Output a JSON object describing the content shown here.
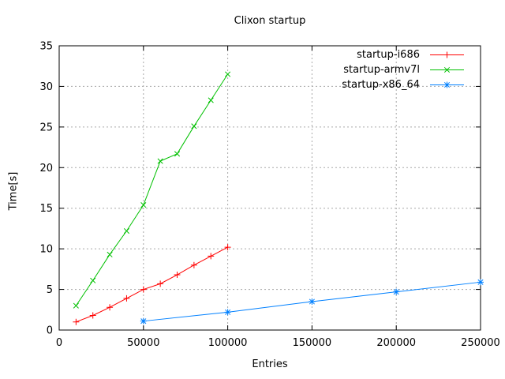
{
  "chart_data": {
    "type": "line",
    "title": "Clixon startup",
    "xlabel": "Entries",
    "ylabel": "Time[s]",
    "xlim": [
      0,
      250000
    ],
    "ylim": [
      0,
      35
    ],
    "x_ticks": [
      0,
      50000,
      100000,
      150000,
      200000,
      250000
    ],
    "y_ticks": [
      0,
      5,
      10,
      15,
      20,
      25,
      30,
      35
    ],
    "grid": true,
    "legend_position": "top-right-inside",
    "colors": {
      "background": "#ffffff",
      "axis": "#000000",
      "grid": "#a8a8a8",
      "text": "#000000"
    },
    "series": [
      {
        "name": "startup-i686",
        "color": "#ff0000",
        "marker": "plus",
        "x": [
          10000,
          20000,
          30000,
          40000,
          50000,
          60000,
          70000,
          80000,
          90000,
          100000
        ],
        "y": [
          1.0,
          1.8,
          2.8,
          3.9,
          5.0,
          5.7,
          6.8,
          8.0,
          9.1,
          10.2
        ]
      },
      {
        "name": "startup-armv7l",
        "color": "#00c000",
        "marker": "cross",
        "x": [
          10000,
          20000,
          30000,
          40000,
          50000,
          60000,
          70000,
          80000,
          90000,
          100000
        ],
        "y": [
          3.0,
          6.1,
          9.3,
          12.2,
          15.4,
          20.8,
          21.7,
          25.1,
          28.3,
          31.5
        ]
      },
      {
        "name": "startup-x86_64",
        "color": "#0080ff",
        "marker": "asterisk",
        "x": [
          50000,
          100000,
          150000,
          200000,
          250000
        ],
        "y": [
          1.1,
          2.2,
          3.5,
          4.7,
          5.9
        ]
      }
    ]
  }
}
